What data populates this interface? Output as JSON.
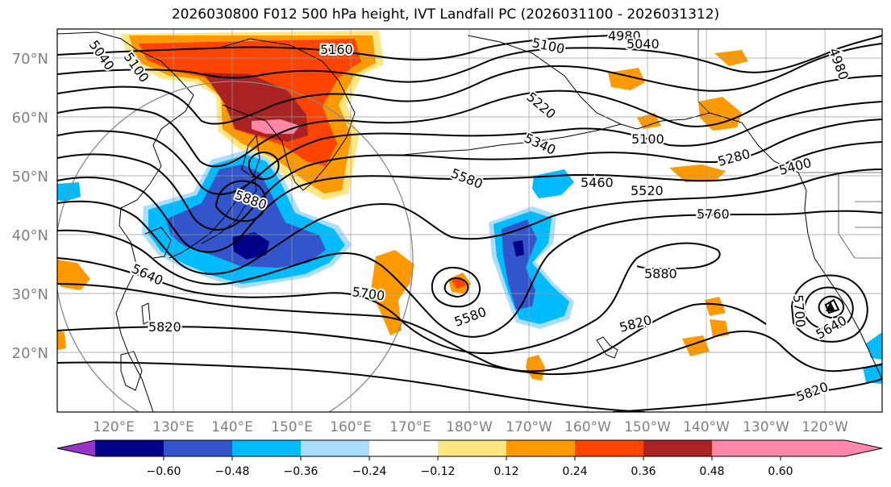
{
  "title": "2026030800 F012 500 hPa height, IVT Landfall PC (2026031100 - 2026031312)",
  "map": {
    "lat_ticks": [
      "70°N",
      "60°N",
      "50°N",
      "40°N",
      "30°N",
      "20°N"
    ],
    "lon_ticks": [
      "120°E",
      "130°E",
      "140°E",
      "150°E",
      "160°E",
      "170°E",
      "180°W",
      "170°W",
      "160°W",
      "150°W",
      "140°W",
      "130°W",
      "120°W"
    ],
    "contour_labels": [
      {
        "text": "5160",
        "name": "contour-label-5160"
      },
      {
        "text": "5100",
        "name": "contour-label-5100-west"
      },
      {
        "text": "5040",
        "name": "contour-label-5040-west"
      },
      {
        "text": "5100",
        "name": "contour-label-5100-north"
      },
      {
        "text": "4980",
        "name": "contour-label-4980"
      },
      {
        "text": "5040",
        "name": "contour-label-5040-north"
      },
      {
        "text": "4980",
        "name": "contour-label-4980-east"
      },
      {
        "text": "5220",
        "name": "contour-label-5220"
      },
      {
        "text": "5340",
        "name": "contour-label-5340"
      },
      {
        "text": "5100",
        "name": "contour-label-5100-alaska"
      },
      {
        "text": "5280",
        "name": "contour-label-5280-east"
      },
      {
        "text": "5400",
        "name": "contour-label-5400"
      },
      {
        "text": "5580",
        "name": "contour-label-5580-north"
      },
      {
        "text": "5460",
        "name": "contour-label-5460"
      },
      {
        "text": "5520",
        "name": "contour-label-5520"
      },
      {
        "text": "5880",
        "name": "contour-label-5880-japan"
      },
      {
        "text": "5760",
        "name": "contour-label-5760"
      },
      {
        "text": "5640",
        "name": "contour-label-5640-west"
      },
      {
        "text": "5880",
        "name": "contour-label-5880"
      },
      {
        "text": "5700",
        "name": "contour-label-5700"
      },
      {
        "text": "5580",
        "name": "contour-label-5580-low"
      },
      {
        "text": "5820",
        "name": "contour-label-5820-west"
      },
      {
        "text": "5820",
        "name": "contour-label-5820-mid"
      },
      {
        "text": "5700",
        "name": "contour-label-5700-east"
      },
      {
        "text": "5640",
        "name": "contour-label-5640-east"
      },
      {
        "text": "5820",
        "name": "contour-label-5820-south"
      }
    ]
  },
  "colorbar": {
    "tick_labels": [
      "−0.60",
      "−0.48",
      "−0.36",
      "−0.24",
      "−0.12",
      "0.12",
      "0.24",
      "0.36",
      "0.48",
      "0.60"
    ],
    "colors": [
      "#9933cc",
      "#000088",
      "#3355cc",
      "#00bbff",
      "#aaddff",
      "#ffffff",
      "#ffe680",
      "#ff9900",
      "#ff4400",
      "#aa2222",
      "#ff88aa"
    ]
  },
  "palette": {
    "pink": "#ff88aa",
    "darkred": "#aa2222",
    "red": "#ff4400",
    "orange": "#ff9900",
    "yellow": "#ffe680",
    "lightblue": "#aaddff",
    "cyan": "#00bbff",
    "blue": "#3355cc",
    "navy": "#000088",
    "purple": "#9933cc"
  }
}
